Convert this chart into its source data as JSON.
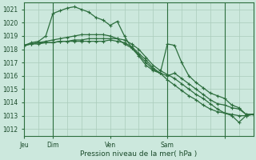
{
  "background_color": "#cce8dd",
  "plot_bg_color": "#cce8dd",
  "grid_color": "#aaccbb",
  "line_color": "#2d6e3e",
  "ylabel_values": [
    1012,
    1013,
    1014,
    1015,
    1016,
    1017,
    1018,
    1019,
    1020,
    1021
  ],
  "ylim": [
    1011.5,
    1021.5
  ],
  "xlabel": "Pression niveau de la mer( hPa )",
  "x_day_ticks": [
    0,
    24,
    72,
    120,
    168
  ],
  "x_day_labels": [
    "Jeu",
    "Dim",
    "Ven",
    "Sam",
    ""
  ],
  "x_vlines": [
    24,
    120,
    168
  ],
  "total_hours": 192,
  "series1": {
    "x": [
      0,
      6,
      12,
      18,
      24,
      30,
      36,
      42,
      48,
      54,
      60,
      66,
      72,
      78,
      84,
      90,
      96,
      102,
      108,
      114,
      120,
      126,
      132,
      138,
      144,
      150,
      156,
      162,
      168,
      174,
      180,
      186,
      192
    ],
    "y": [
      1018.3,
      1018.5,
      1018.6,
      1019.0,
      1020.7,
      1020.9,
      1021.1,
      1021.2,
      1021.0,
      1020.8,
      1020.4,
      1020.2,
      1019.8,
      1020.1,
      1019.0,
      1018.1,
      1017.5,
      1016.8,
      1016.4,
      1016.2,
      1018.4,
      1018.3,
      1017.0,
      1016.0,
      1015.5,
      1015.1,
      1014.7,
      1014.5,
      1014.3,
      1013.8,
      1013.6,
      1013.1,
      1013.1
    ]
  },
  "series2": {
    "x": [
      0,
      6,
      12,
      18,
      24,
      30,
      36,
      42,
      48,
      54,
      60,
      66,
      72,
      78,
      84,
      90,
      96,
      102,
      108,
      114,
      120,
      126,
      132,
      138,
      144,
      150,
      156,
      162,
      168,
      174,
      180,
      186,
      192
    ],
    "y": [
      1018.3,
      1018.4,
      1018.5,
      1018.6,
      1018.7,
      1018.8,
      1018.9,
      1019.0,
      1019.1,
      1019.1,
      1019.1,
      1019.1,
      1019.0,
      1018.8,
      1018.4,
      1018.1,
      1017.6,
      1017.0,
      1016.5,
      1016.2,
      1016.0,
      1016.2,
      1015.8,
      1015.4,
      1015.0,
      1014.6,
      1014.2,
      1013.9,
      1013.8,
      1013.6,
      1013.5,
      1013.1,
      1013.1
    ]
  },
  "series3": {
    "x": [
      0,
      6,
      12,
      18,
      24,
      30,
      36,
      42,
      48,
      54,
      60,
      66,
      72,
      78,
      84,
      90,
      96,
      102,
      108,
      114,
      120,
      126,
      132,
      138,
      144,
      150,
      156,
      162,
      168,
      174,
      180,
      186,
      192
    ],
    "y": [
      1018.3,
      1018.4,
      1018.4,
      1018.5,
      1018.5,
      1018.6,
      1018.6,
      1018.7,
      1018.7,
      1018.8,
      1018.8,
      1018.8,
      1018.8,
      1018.8,
      1018.7,
      1018.4,
      1018.0,
      1017.4,
      1016.8,
      1016.4,
      1016.1,
      1015.8,
      1015.4,
      1015.0,
      1014.6,
      1014.3,
      1013.9,
      1013.5,
      1013.2,
      1013.0,
      1012.5,
      1013.0,
      1013.1
    ]
  },
  "series4": {
    "x": [
      0,
      6,
      12,
      18,
      24,
      30,
      36,
      42,
      48,
      54,
      60,
      66,
      72,
      78,
      84,
      90,
      96,
      102,
      108,
      114,
      120,
      126,
      132,
      138,
      144,
      150,
      156,
      162,
      168,
      174,
      180,
      186,
      192
    ],
    "y": [
      1018.3,
      1018.4,
      1018.5,
      1018.5,
      1018.5,
      1018.6,
      1018.6,
      1018.6,
      1018.6,
      1018.6,
      1018.6,
      1018.6,
      1018.7,
      1018.6,
      1018.5,
      1018.2,
      1017.7,
      1017.2,
      1016.6,
      1016.2,
      1015.7,
      1015.3,
      1014.9,
      1014.5,
      1014.2,
      1013.8,
      1013.5,
      1013.3,
      1013.2,
      1013.1,
      1013.0,
      1013.0,
      1013.1
    ]
  }
}
